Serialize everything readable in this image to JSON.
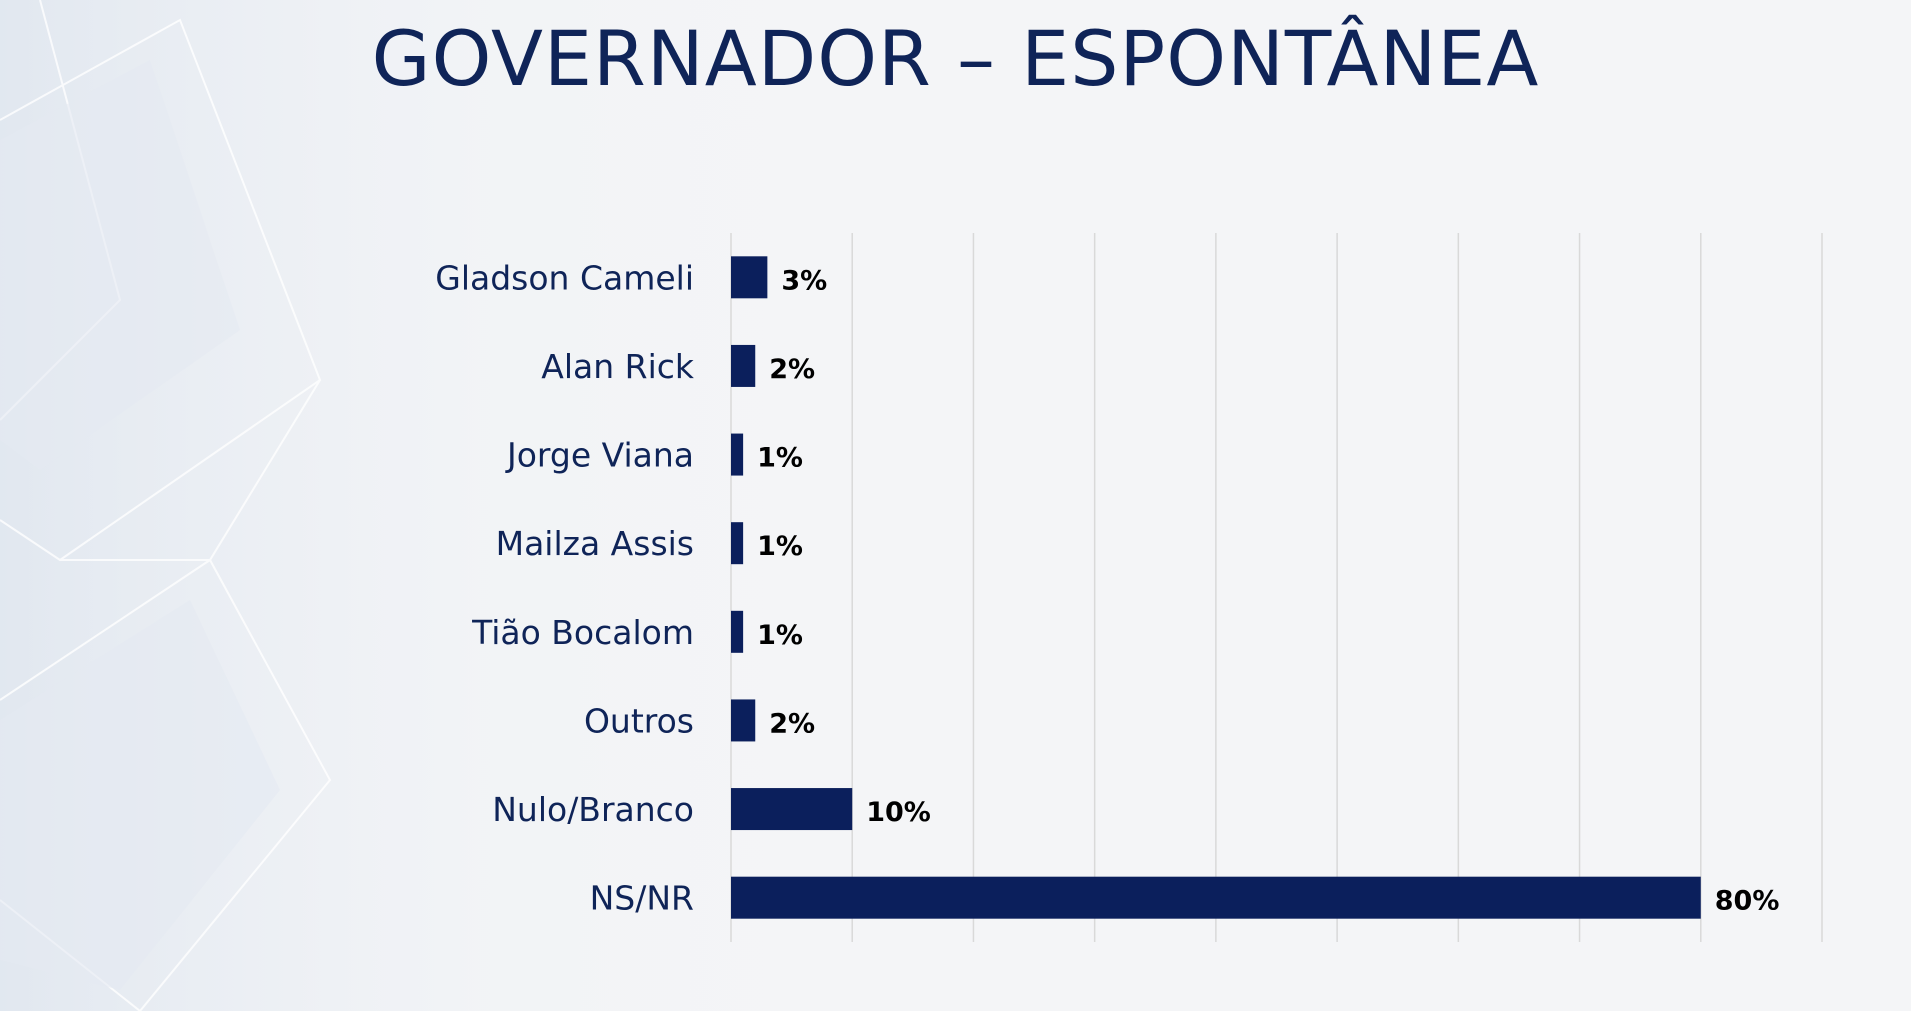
{
  "title": "GOVERNADOR – ESPONTÂNEA",
  "colors": {
    "bar": "#0b1f5c",
    "title": "#0f2458",
    "gridline": "#d9d9d9",
    "background": "#f4f5f7"
  },
  "chart_data": {
    "type": "bar",
    "orientation": "horizontal",
    "title": "GOVERNADOR – ESPONTÂNEA",
    "categories": [
      "Gladson Cameli",
      "Alan Rick",
      "Jorge Viana",
      "Mailza Assis",
      "Tião Bocalom",
      "Outros",
      "Nulo/Branco",
      "NS/NR"
    ],
    "values": [
      3,
      2,
      1,
      1,
      1,
      2,
      10,
      80
    ],
    "value_labels": [
      "3%",
      "2%",
      "1%",
      "1%",
      "1%",
      "2%",
      "10%",
      "80%"
    ],
    "unit": "%",
    "xlim": [
      0,
      90
    ],
    "grid": "vertical",
    "legend": "none",
    "xlabel": "",
    "ylabel": ""
  }
}
